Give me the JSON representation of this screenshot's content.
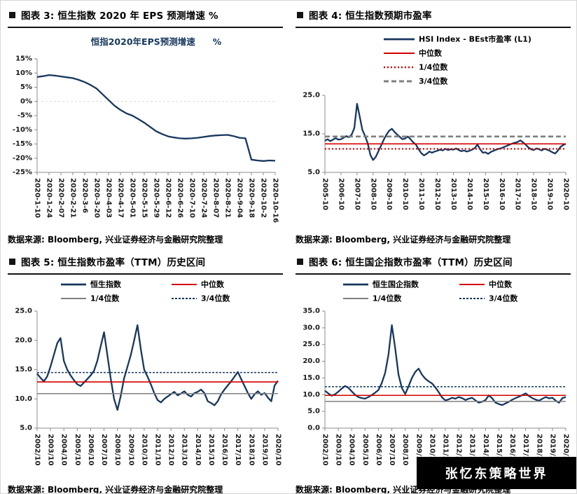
{
  "colors": {
    "navy": "#17375E",
    "red": "#D30000",
    "gray": "#7F7F7F"
  },
  "watermark": "张忆东策略世界",
  "source_note": "数据来源: Bloomberg, 兴业证券经济与金融研究院整理",
  "panels": [
    {
      "header": "图表 3:  恒生指数 2020 年 EPS 预测增速 %"
    },
    {
      "header": "图表 4:  恒生指数预期市盈率"
    },
    {
      "header": "图表 5:  恒生指数市盈率（TTM）历史区间"
    },
    {
      "header": "图表 6:  恒生国企指数市盈率（TTM）历史区间"
    }
  ],
  "chart_data": [
    {
      "type": "line",
      "title": "恒指2020年EPS预测增速　　%",
      "x_labels": [
        "2020-1-10",
        "2020-1-24",
        "2020-2-07",
        "2020-2-21",
        "2020-3-6",
        "2020-3-20",
        "2020-4-03",
        "2020-4-17",
        "2020-5-01",
        "2020-5-15",
        "2020-5-29",
        "2020-6-12",
        "2020-6-26",
        "2020-7-10",
        "2020-7-24",
        "2020-8-07",
        "2020-8-21",
        "2020-9-04",
        "2020-9-18",
        "2020-10-2",
        "2020-10-16"
      ],
      "ylim": [
        -25,
        15
      ],
      "yticks": [
        [
          15,
          "15%"
        ],
        [
          10,
          "10%"
        ],
        [
          5,
          "5%"
        ],
        [
          0,
          "0%"
        ],
        [
          -5,
          "-5%"
        ],
        [
          -10,
          "-10%"
        ],
        [
          -15,
          "-15%"
        ],
        [
          -20,
          "-20%"
        ],
        [
          -25,
          "-25%"
        ]
      ],
      "gridlines": [
        0
      ],
      "series": [
        {
          "name": "恒指2020年EPS预测增速",
          "style": "navy-thick",
          "values": [
            8.6,
            8.9,
            9.3,
            9.1,
            8.8,
            8.5,
            8.2,
            7.6,
            6.8,
            5.8,
            4.5,
            2.5,
            0.5,
            -1.5,
            -3.0,
            -4.2,
            -5.0,
            -6.2,
            -7.5,
            -9.0,
            -10.5,
            -11.5,
            -12.3,
            -12.7,
            -13.0,
            -13.1,
            -13.0,
            -12.8,
            -12.5,
            -12.2,
            -12.0,
            -11.9,
            -11.8,
            -12.2,
            -12.8,
            -13.0,
            -20.5,
            -20.8,
            -21.0,
            -20.8,
            -20.9
          ]
        }
      ],
      "ref_lines": []
    },
    {
      "type": "line",
      "x_labels": [
        "2005-10",
        "2006-10",
        "2007-10",
        "2008-10",
        "2009-10",
        "2010-10",
        "2011-10",
        "2012-10",
        "2013-10",
        "2014-10",
        "2015-10",
        "2016-10",
        "2017-10",
        "2018-10",
        "2019-10",
        "2020-10"
      ],
      "ylim": [
        5,
        25
      ],
      "yticks": [
        [
          25,
          "25.0"
        ],
        [
          15,
          "15.0"
        ],
        [
          5,
          "5.0"
        ]
      ],
      "series": [
        {
          "name": "HSI Index - BEst市盈率 (L1)",
          "style": "navy-thick",
          "values": [
            13.2,
            13.6,
            13.1,
            13.5,
            13.9,
            13.5,
            13.6,
            14.0,
            14.4,
            14.1,
            14.8,
            16.5,
            22.8,
            19.5,
            16.0,
            14.5,
            12.5,
            9.5,
            8.2,
            9.0,
            10.5,
            12.0,
            13.5,
            14.8,
            15.8,
            16.3,
            15.5,
            14.8,
            14.2,
            13.6,
            13.8,
            14.3,
            13.6,
            12.8,
            12.2,
            11.0,
            10.0,
            9.4,
            9.8,
            10.4,
            10.1,
            10.4,
            10.6,
            10.9,
            10.7,
            11.1,
            10.8,
            11.0,
            10.9,
            11.2,
            10.8,
            10.5,
            10.7,
            10.4,
            10.6,
            10.9,
            11.3,
            12.2,
            11.0,
            10.1,
            10.2,
            9.8,
            10.3,
            10.6,
            10.9,
            11.1,
            11.3,
            11.6,
            11.9,
            12.2,
            12.5,
            12.7,
            12.9,
            13.3,
            12.8,
            12.2,
            11.5,
            11.0,
            10.8,
            11.2,
            11.0,
            10.7,
            11.1,
            10.9,
            10.6,
            10.2,
            9.9,
            10.6,
            11.6,
            12.1,
            12.4
          ]
        }
      ],
      "ref_lines": [
        {
          "label": "中位数",
          "value": 12.4,
          "style": "red-solid"
        },
        {
          "label": "1/4位数",
          "value": 11.1,
          "style": "red-dotted"
        },
        {
          "label": "3/4位数",
          "value": 14.3,
          "style": "gray-dashed"
        }
      ]
    },
    {
      "type": "line",
      "x_labels": [
        "2002/10",
        "2003/10",
        "2004/10",
        "2005/10",
        "2006/10",
        "2007/10",
        "2008/10",
        "2009/10",
        "2010/10",
        "2011/10",
        "2012/10",
        "2013/10",
        "2014/10",
        "2015/10",
        "2016/10",
        "2017/10",
        "2018/10",
        "2019/10",
        "2020/10"
      ],
      "ylim": [
        5,
        25
      ],
      "yticks": [
        [
          25,
          "25.0"
        ],
        [
          20,
          "20.0"
        ],
        [
          15,
          "15.0"
        ],
        [
          10,
          "10.0"
        ],
        [
          5,
          "5.0"
        ]
      ],
      "series": [
        {
          "name": "恒生指数",
          "style": "navy-thick",
          "values": [
            14.3,
            13.6,
            13.0,
            13.8,
            15.5,
            17.5,
            19.5,
            20.4,
            16.5,
            15.0,
            14.0,
            13.2,
            12.5,
            12.2,
            12.8,
            13.4,
            14.0,
            14.8,
            16.5,
            19.0,
            21.4,
            17.5,
            13.5,
            10.0,
            8.1,
            10.5,
            13.5,
            15.5,
            17.5,
            20.0,
            22.6,
            18.5,
            15.0,
            13.8,
            12.5,
            11.0,
            9.8,
            9.4,
            10.0,
            10.4,
            10.8,
            11.2,
            10.6,
            10.9,
            11.3,
            10.7,
            10.4,
            11.0,
            11.2,
            11.6,
            11.0,
            9.6,
            9.3,
            8.9,
            9.6,
            10.8,
            11.6,
            12.3,
            13.0,
            13.8,
            14.6,
            13.4,
            12.2,
            11.0,
            10.0,
            10.8,
            11.3,
            10.7,
            11.0,
            10.2,
            9.6,
            12.3,
            13.1
          ]
        }
      ],
      "ref_lines": [
        {
          "label": "中位数",
          "value": 12.9,
          "style": "red-solid"
        },
        {
          "label": "1/4位数",
          "value": 10.9,
          "style": "gray-solid"
        },
        {
          "label": "3/4位数",
          "value": 14.5,
          "style": "navy-dotted"
        }
      ]
    },
    {
      "type": "line",
      "x_labels": [
        "2002/10",
        "2003/10",
        "2004/10",
        "2005/10",
        "2006/10",
        "2007/10",
        "2008/10",
        "2009/10",
        "2010/10",
        "2011/10",
        "2012/10",
        "2013/10",
        "2014/10",
        "2015/10",
        "2016/10",
        "2017/10",
        "2018/10",
        "2019/10",
        "2020/10"
      ],
      "ylim": [
        0,
        35
      ],
      "yticks": [
        [
          35,
          "35.0"
        ],
        [
          30,
          "30.0"
        ],
        [
          25,
          "25.0"
        ],
        [
          20,
          "20.0"
        ],
        [
          15,
          "15.0"
        ],
        [
          10,
          "10.0"
        ],
        [
          5,
          "5.0"
        ],
        [
          0,
          "0.0"
        ]
      ],
      "series": [
        {
          "name": "恒生国企指数",
          "style": "navy-thick",
          "values": [
            11.2,
            10.4,
            9.7,
            10.1,
            10.9,
            11.8,
            12.6,
            12.1,
            11.0,
            10.0,
            9.3,
            9.0,
            8.8,
            9.3,
            9.9,
            10.6,
            11.4,
            13.5,
            16.5,
            22.0,
            30.8,
            24.0,
            16.0,
            12.0,
            10.2,
            12.5,
            15.0,
            16.8,
            17.8,
            16.0,
            14.8,
            14.0,
            13.4,
            12.2,
            10.8,
            9.2,
            8.3,
            8.6,
            9.1,
            8.8,
            9.3,
            9.0,
            8.4,
            8.8,
            9.1,
            8.3,
            7.6,
            7.9,
            8.4,
            9.8,
            8.9,
            7.6,
            7.2,
            6.9,
            7.4,
            7.9,
            8.5,
            9.0,
            9.4,
            9.9,
            10.4,
            9.6,
            9.0,
            8.5,
            8.2,
            8.8,
            9.3,
            8.9,
            9.1,
            8.2,
            7.6,
            9.0,
            9.3
          ]
        }
      ],
      "ref_lines": [
        {
          "label": "中位数",
          "value": 9.8,
          "style": "red-solid"
        },
        {
          "label": "1/4位数",
          "value": 8.0,
          "style": "gray-solid"
        },
        {
          "label": "3/4位数",
          "value": 12.4,
          "style": "navy-dotted"
        }
      ]
    }
  ]
}
